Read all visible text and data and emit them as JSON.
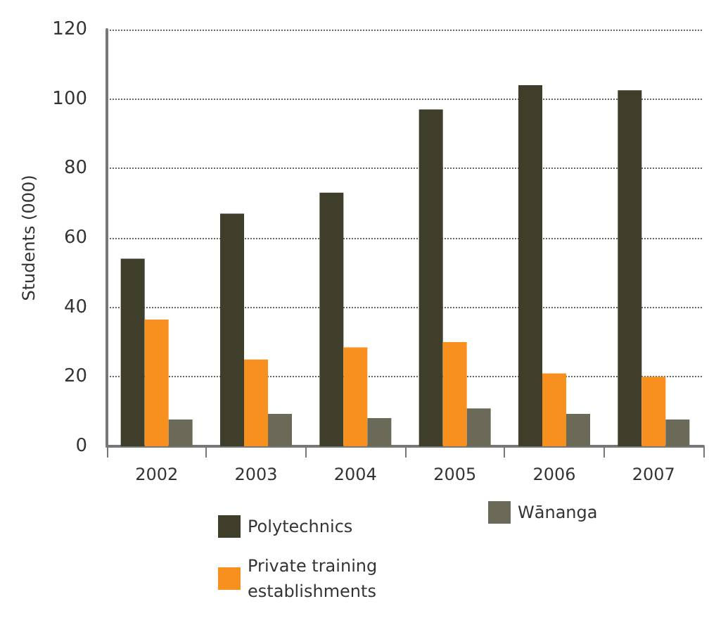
{
  "chart_data": {
    "type": "bar",
    "ylabel": "Students (000)",
    "categories": [
      "2002",
      "2003",
      "2004",
      "2005",
      "2006",
      "2007"
    ],
    "series": [
      {
        "name": "Polytechnics",
        "color": "#3f3e2a",
        "values": [
          54,
          67,
          73,
          97,
          104,
          102.5
        ]
      },
      {
        "name": "Private training establishments",
        "color": "#f7901e",
        "values": [
          36.5,
          25,
          28.5,
          30,
          21,
          20
        ]
      },
      {
        "name": "Wānanga",
        "color": "#6b6a58",
        "values": [
          7.7,
          9.3,
          8.1,
          10.9,
          9.3,
          7.7
        ]
      }
    ],
    "ylim": [
      0,
      120
    ],
    "yticks": [
      0,
      20,
      40,
      60,
      80,
      100,
      120
    ],
    "grid": "y",
    "legend": "bottom"
  }
}
